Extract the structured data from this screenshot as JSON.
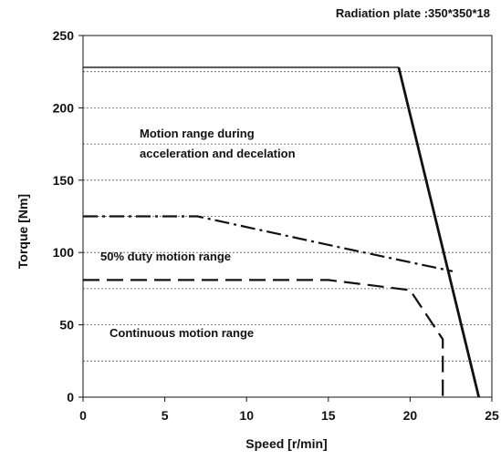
{
  "chart_data": {
    "type": "line",
    "subtitle": "Radiation plate :350*350*18",
    "xlabel": "Speed [r/min]",
    "ylabel": "Torque [Nm]",
    "xlim": [
      0,
      25
    ],
    "ylim": [
      0,
      250
    ],
    "x_ticks": [
      "0",
      "5",
      "10",
      "15",
      "20",
      "25"
    ],
    "y_ticks": [
      "0",
      "50",
      "100",
      "150",
      "200",
      "250"
    ],
    "grid": "horizontal dashed",
    "annotations": [
      "Motion range during",
      "acceleration and decelation",
      "50% duty motion range",
      "Continuous motion range"
    ],
    "series": [
      {
        "style": "thin-solid",
        "points": [
          [
            0,
            228
          ],
          [
            19.3,
            228
          ]
        ]
      },
      {
        "style": "thick-solid",
        "points": [
          [
            19.3,
            228
          ],
          [
            24.2,
            0
          ]
        ]
      },
      {
        "style": "dash-dot",
        "points": [
          [
            0,
            125
          ],
          [
            7,
            125
          ],
          [
            15.5,
            104
          ],
          [
            22.6,
            87
          ]
        ]
      },
      {
        "style": "dashed",
        "points": [
          [
            0,
            81
          ],
          [
            15,
            81
          ],
          [
            20,
            74
          ],
          [
            22,
            40
          ],
          [
            22,
            0
          ]
        ]
      }
    ]
  },
  "colors": {
    "line": "#111111",
    "grid": "#555555",
    "background": "#ffffff"
  }
}
